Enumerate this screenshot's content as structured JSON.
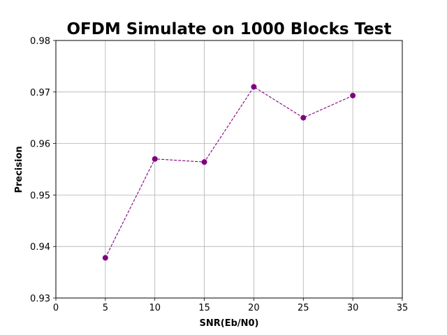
{
  "chart_data": {
    "type": "line",
    "title": "OFDM Simulate on 1000 Blocks Test",
    "xlabel": "SNR(Eb/N0)",
    "ylabel": "Precision",
    "xlim": [
      0,
      35
    ],
    "ylim": [
      0.93,
      0.98
    ],
    "xticks": [
      0,
      5,
      10,
      15,
      20,
      25,
      30,
      35
    ],
    "yticks": [
      0.93,
      0.94,
      0.95,
      0.96,
      0.97,
      0.98
    ],
    "xtick_labels": [
      "0",
      "5",
      "10",
      "15",
      "20",
      "25",
      "30",
      "35"
    ],
    "ytick_labels": [
      "0.93",
      "0.94",
      "0.95",
      "0.96",
      "0.97",
      "0.98"
    ],
    "grid": true,
    "x": [
      5,
      10,
      15,
      20,
      25,
      30
    ],
    "series": [
      {
        "values": [
          0.9378,
          0.957,
          0.9564,
          0.971,
          0.965,
          0.9693
        ],
        "color": "#800080",
        "line_style": "dashed",
        "marker": "circle"
      }
    ]
  }
}
